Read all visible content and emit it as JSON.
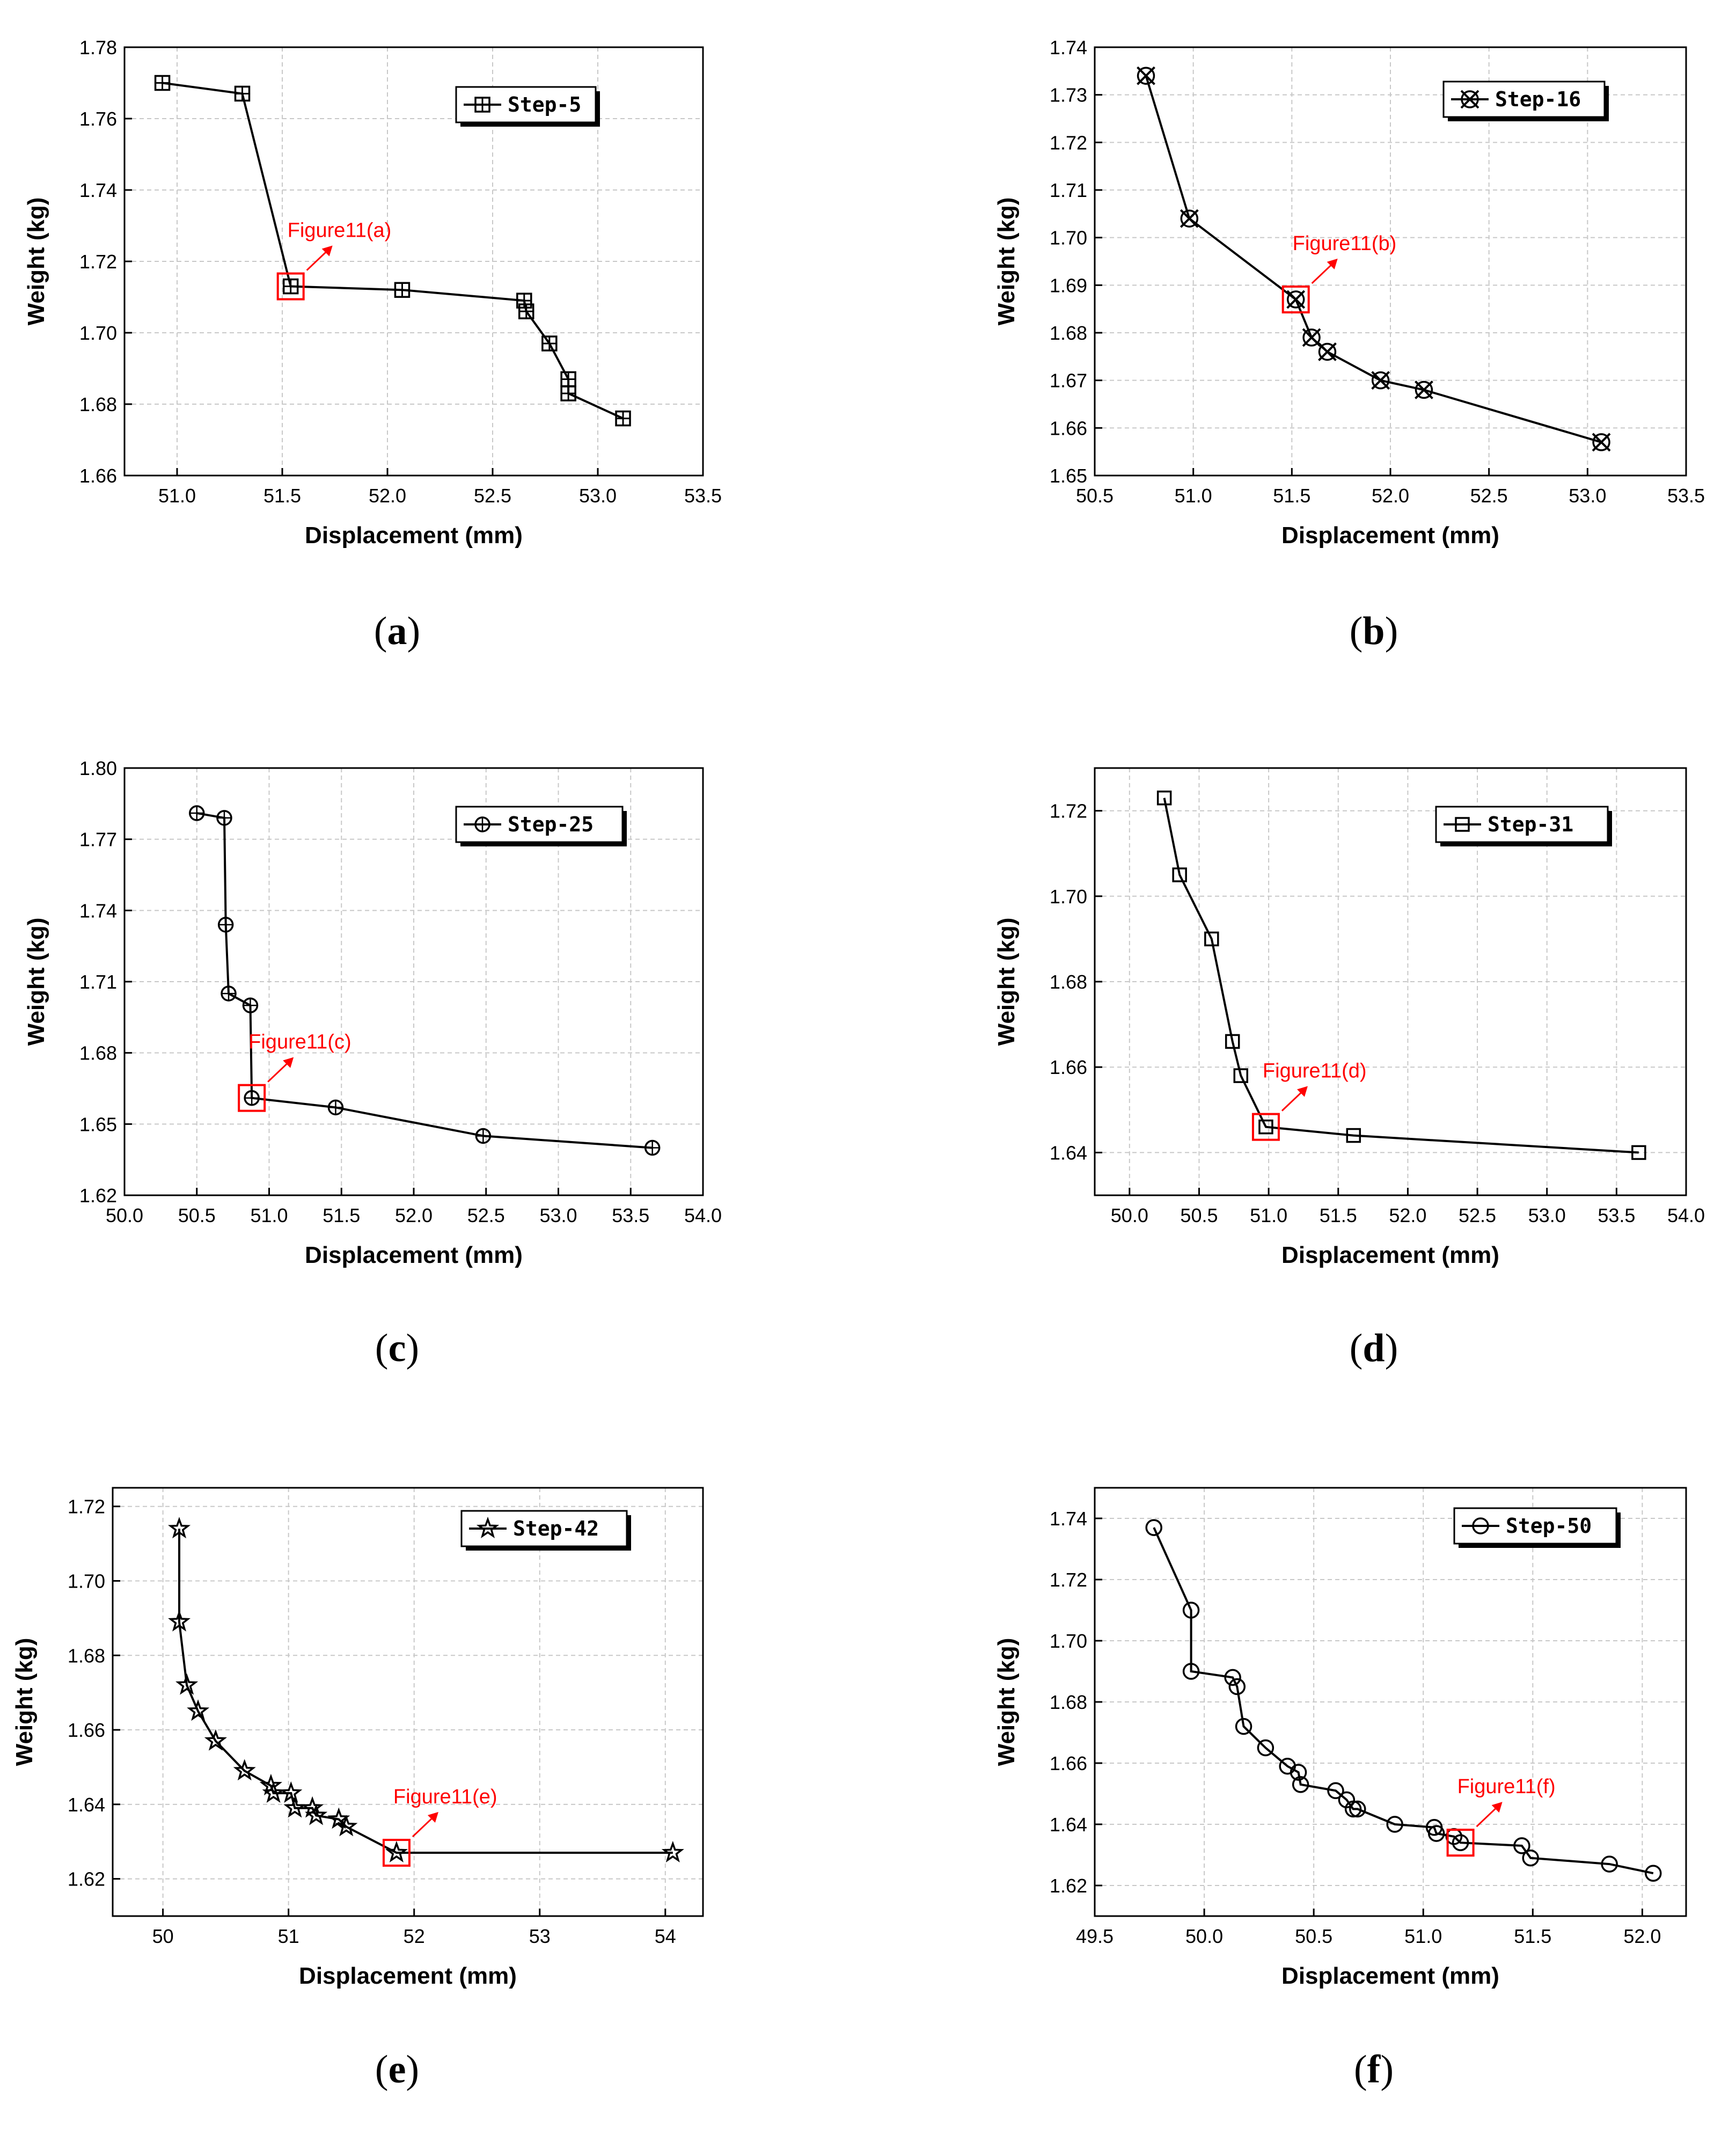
{
  "colors": {
    "series": "#000000",
    "highlight": "#ff0000",
    "grid": "#c8c8c8"
  },
  "chart_data": [
    {
      "type": "line",
      "panel": "a",
      "title": "",
      "xlabel": "Displacement (mm)",
      "ylabel": "Weight (kg)",
      "xlim": [
        50.75,
        53.5
      ],
      "ylim": [
        1.66,
        1.78
      ],
      "xticks": [
        "51.0",
        "51.5",
        "52.0",
        "52.5",
        "53.0",
        "53.5"
      ],
      "yticks": [
        "1.66",
        "1.68",
        "1.70",
        "1.72",
        "1.74",
        "1.76",
        "1.78"
      ],
      "series": [
        {
          "name": "Step-5",
          "marker": "square-plus",
          "x": [
            50.93,
            51.31,
            51.54,
            52.07,
            52.65,
            52.66,
            52.77,
            52.86,
            52.86,
            53.12
          ],
          "y": [
            1.77,
            1.767,
            1.713,
            1.712,
            1.709,
            1.706,
            1.697,
            1.687,
            1.683,
            1.676
          ]
        }
      ],
      "legend_position": "top-right",
      "annotation": {
        "text": "Figure11(a)",
        "x": 51.54,
        "y": 1.713
      }
    },
    {
      "type": "line",
      "panel": "b",
      "title": "",
      "xlabel": "Displacement (mm)",
      "ylabel": "Weight (kg)",
      "xlim": [
        50.5,
        53.5
      ],
      "ylim": [
        1.65,
        1.74
      ],
      "xticks": [
        "50.5",
        "51.0",
        "51.5",
        "52.0",
        "52.5",
        "53.0",
        "53.5"
      ],
      "yticks": [
        "1.65",
        "1.66",
        "1.67",
        "1.68",
        "1.69",
        "1.70",
        "1.71",
        "1.72",
        "1.73",
        "1.74"
      ],
      "series": [
        {
          "name": "Step-16",
          "marker": "circle-x",
          "x": [
            50.76,
            50.98,
            51.52,
            51.6,
            51.68,
            51.95,
            52.17,
            53.07
          ],
          "y": [
            1.734,
            1.704,
            1.687,
            1.679,
            1.676,
            1.67,
            1.668,
            1.657
          ]
        }
      ],
      "legend_position": "top-right",
      "annotation": {
        "text": "Figure11(b)",
        "x": 51.52,
        "y": 1.687
      }
    },
    {
      "type": "line",
      "panel": "c",
      "title": "",
      "xlabel": "Displacement (mm)",
      "ylabel": "Weight (kg)",
      "xlim": [
        50.0,
        54.0
      ],
      "ylim": [
        1.62,
        1.8
      ],
      "xticks": [
        "50.0",
        "50.5",
        "51.0",
        "51.5",
        "52.0",
        "52.5",
        "53.0",
        "53.5",
        "54.0"
      ],
      "yticks": [
        "1.62",
        "1.65",
        "1.68",
        "1.71",
        "1.74",
        "1.77",
        "1.80"
      ],
      "series": [
        {
          "name": "Step-25",
          "marker": "circle-plus",
          "x": [
            50.5,
            50.69,
            50.7,
            50.72,
            50.87,
            50.88,
            51.46,
            52.48,
            53.65
          ],
          "y": [
            1.781,
            1.779,
            1.734,
            1.705,
            1.7,
            1.661,
            1.657,
            1.645,
            1.64
          ]
        }
      ],
      "legend_position": "top-right",
      "annotation": {
        "text": "Figure11(c)",
        "x": 50.88,
        "y": 1.661
      }
    },
    {
      "type": "line",
      "panel": "d",
      "title": "",
      "xlabel": "Displacement (mm)",
      "ylabel": "Weight (kg)",
      "xlim": [
        49.75,
        54.0
      ],
      "ylim": [
        1.63,
        1.73
      ],
      "xticks": [
        "50.0",
        "50.5",
        "51.0",
        "51.5",
        "52.0",
        "52.5",
        "53.0",
        "53.5",
        "54.0"
      ],
      "yticks": [
        "1.64",
        "1.66",
        "1.68",
        "1.70",
        "1.72"
      ],
      "series": [
        {
          "name": "Step-31",
          "marker": "square",
          "x": [
            50.25,
            50.36,
            50.59,
            50.74,
            50.8,
            50.98,
            51.61,
            53.66
          ],
          "y": [
            1.723,
            1.705,
            1.69,
            1.666,
            1.658,
            1.646,
            1.644,
            1.64
          ]
        }
      ],
      "legend_position": "top-right",
      "annotation": {
        "text": "Figure11(d)",
        "x": 50.98,
        "y": 1.646
      }
    },
    {
      "type": "line",
      "panel": "e",
      "title": "",
      "xlabel": "Displacement (mm)",
      "ylabel": "Weight (kg)",
      "xlim": [
        49.6,
        54.3
      ],
      "ylim": [
        1.61,
        1.725
      ],
      "xticks": [
        "50",
        "51",
        "52",
        "53",
        "54"
      ],
      "yticks": [
        "1.62",
        "1.64",
        "1.66",
        "1.68",
        "1.70",
        "1.72"
      ],
      "series": [
        {
          "name": "Step-42",
          "marker": "star",
          "x": [
            50.13,
            50.13,
            50.19,
            50.28,
            50.42,
            50.65,
            50.86,
            50.88,
            51.02,
            51.05,
            51.19,
            51.22,
            51.4,
            51.46,
            51.86,
            54.06
          ],
          "y": [
            1.714,
            1.689,
            1.672,
            1.665,
            1.657,
            1.649,
            1.645,
            1.643,
            1.643,
            1.639,
            1.639,
            1.637,
            1.636,
            1.634,
            1.627,
            1.627
          ]
        }
      ],
      "legend_position": "top-right",
      "annotation": {
        "text": "Figure11(e)",
        "x": 51.86,
        "y": 1.627
      }
    },
    {
      "type": "line",
      "panel": "f",
      "title": "",
      "xlabel": "Displacement (mm)",
      "ylabel": "Weight (kg)",
      "xlim": [
        49.5,
        52.2
      ],
      "ylim": [
        1.61,
        1.75
      ],
      "xticks": [
        "49.5",
        "50.0",
        "50.5",
        "51.0",
        "51.5",
        "52.0"
      ],
      "yticks": [
        "1.62",
        "1.64",
        "1.66",
        "1.68",
        "1.70",
        "1.72",
        "1.74"
      ],
      "series": [
        {
          "name": "Step-50",
          "marker": "circle",
          "x": [
            49.77,
            49.94,
            49.94,
            50.13,
            50.15,
            50.18,
            50.28,
            50.38,
            50.43,
            50.44,
            50.6,
            50.65,
            50.68,
            50.7,
            50.87,
            51.05,
            51.06,
            51.14,
            51.17,
            51.45,
            51.49,
            51.85,
            52.05
          ],
          "y": [
            1.737,
            1.71,
            1.69,
            1.688,
            1.685,
            1.672,
            1.665,
            1.659,
            1.657,
            1.653,
            1.651,
            1.648,
            1.645,
            1.645,
            1.64,
            1.639,
            1.637,
            1.636,
            1.634,
            1.633,
            1.629,
            1.627,
            1.624
          ]
        }
      ],
      "legend_position": "top-right",
      "annotation": {
        "text": "Figure11(f)",
        "x": 51.17,
        "y": 1.634
      }
    }
  ]
}
